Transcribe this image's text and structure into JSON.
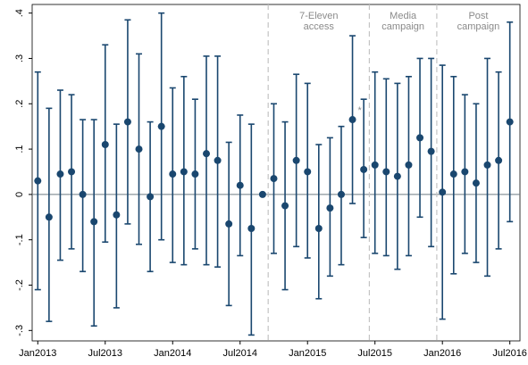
{
  "chart_data": {
    "type": "errorbar",
    "categories": [
      "Jan2013",
      null,
      null,
      null,
      null,
      null,
      "Jul2013",
      null,
      null,
      null,
      null,
      null,
      "Jan2014",
      null,
      null,
      null,
      null,
      null,
      "Jul2014",
      null,
      null,
      null,
      null,
      null,
      "Jan2015",
      null,
      null,
      null,
      null,
      null,
      "Jul2015",
      null,
      null,
      null,
      null,
      null,
      "Jan2016",
      null,
      null,
      null,
      null,
      null,
      "Jul2016"
    ],
    "series": [
      {
        "color": "#1a476f",
        "values": [
          0.03,
          -0.05,
          0.045,
          0.05,
          0.0,
          -0.06,
          0.11,
          -0.045,
          0.16,
          0.1,
          -0.005,
          0.15,
          0.045,
          0.05,
          0.045,
          0.09,
          0.075,
          -0.065,
          0.02,
          -0.075,
          0,
          0.035,
          -0.025,
          0.075,
          0.05,
          -0.075,
          -0.03,
          0.0,
          0.165,
          0.055,
          0.065,
          0.05,
          0.04,
          0.065,
          0.125,
          0.095,
          0.005,
          0.045,
          0.05,
          0.025,
          0.065,
          0.075,
          0.16
        ],
        "lower": [
          -0.21,
          -0.28,
          -0.145,
          -0.12,
          -0.17,
          -0.29,
          -0.105,
          -0.25,
          -0.065,
          -0.11,
          -0.17,
          -0.1,
          -0.15,
          -0.155,
          -0.12,
          -0.155,
          -0.16,
          -0.245,
          -0.135,
          -0.31,
          null,
          -0.13,
          -0.21,
          -0.115,
          -0.14,
          -0.23,
          -0.18,
          -0.155,
          -0.02,
          -0.095,
          -0.13,
          -0.135,
          -0.165,
          -0.135,
          -0.05,
          -0.115,
          -0.275,
          -0.175,
          -0.13,
          -0.15,
          -0.18,
          -0.12,
          -0.06
        ],
        "upper": [
          0.27,
          0.19,
          0.23,
          0.22,
          0.165,
          0.165,
          0.33,
          0.155,
          0.385,
          0.31,
          0.16,
          0.4,
          0.235,
          0.26,
          0.21,
          0.305,
          0.305,
          0.115,
          0.175,
          0.155,
          null,
          0.2,
          0.16,
          0.265,
          0.245,
          0.11,
          0.125,
          0.15,
          0.35,
          0.21,
          0.27,
          0.255,
          0.245,
          0.26,
          0.3,
          0.3,
          0.285,
          0.26,
          0.22,
          0.2,
          0.3,
          0.27,
          0.38
        ],
        "value_notes": [
          null,
          null,
          null,
          null,
          null,
          null,
          null,
          null,
          null,
          null,
          null,
          null,
          null,
          null,
          null,
          null,
          null,
          null,
          null,
          null,
          null,
          null,
          null,
          null,
          null,
          null,
          null,
          null,
          "*",
          null,
          null,
          null,
          null,
          null,
          null,
          null,
          null,
          null,
          null,
          null,
          null,
          null,
          null
        ]
      }
    ],
    "ylim": [
      -0.323,
      0.419
    ],
    "yticks": [
      {
        "value": -0.3,
        "label": "-.3"
      },
      {
        "value": -0.2,
        "label": "-.2"
      },
      {
        "value": -0.1,
        "label": "-.1"
      },
      0,
      {
        "value": 0.1,
        "label": ".1"
      },
      {
        "value": 0.2,
        "label": ".2"
      },
      {
        "value": 0.3,
        "label": ".3"
      },
      {
        "value": 0.4,
        "label": ".4"
      }
    ],
    "reference_line": 0,
    "periods": [
      {
        "start": 20.5,
        "label": [
          "7-Eleven",
          "access"
        ]
      },
      {
        "start": 29.5,
        "label": [
          "Media",
          "campaign"
        ]
      },
      {
        "start": 35.5,
        "label": [
          "Post",
          "campaign"
        ]
      }
    ]
  }
}
